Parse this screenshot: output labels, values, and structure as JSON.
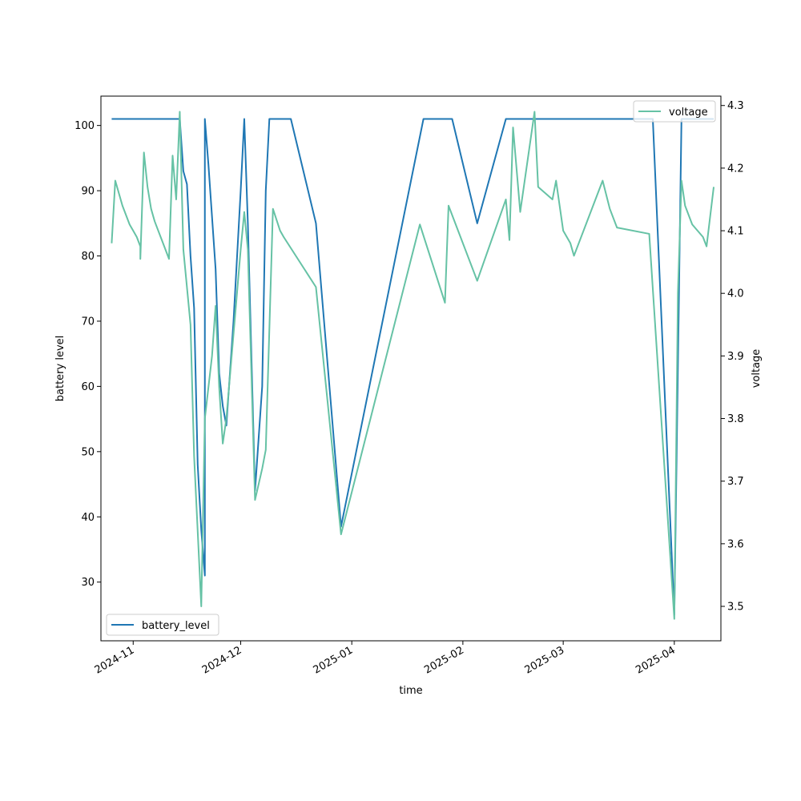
{
  "chart_data": {
    "type": "line",
    "title": "",
    "xlabel": "time",
    "ylabel_left": "battery level",
    "ylabel_right": "voltage",
    "xlim": [
      "2024-10-23",
      "2025-04-14"
    ],
    "ylim_left": [
      21,
      104.5
    ],
    "ylim_right": [
      3.445,
      4.315
    ],
    "x_ticks": [
      {
        "date": "2024-11-01",
        "label": "2024-11"
      },
      {
        "date": "2024-12-01",
        "label": "2024-12"
      },
      {
        "date": "2025-01-01",
        "label": "2025-01"
      },
      {
        "date": "2025-02-01",
        "label": "2025-02"
      },
      {
        "date": "2025-03-01",
        "label": "2025-03"
      },
      {
        "date": "2025-04-01",
        "label": "2025-04"
      }
    ],
    "y_ticks_left": [
      30,
      40,
      50,
      60,
      70,
      80,
      90,
      100
    ],
    "y_ticks_right": [
      3.5,
      3.6,
      3.7,
      3.8,
      3.9,
      4.0,
      4.1,
      4.2,
      4.3
    ],
    "grid": false,
    "legend": [
      {
        "series": "battery_level",
        "label": "battery_level",
        "placement": "lower-left"
      },
      {
        "series": "voltage",
        "label": "voltage",
        "placement": "upper-right"
      }
    ],
    "series": [
      {
        "name": "battery_level",
        "axis": "left",
        "color": "#1f77b4",
        "points": [
          [
            "2024-10-26",
            101
          ],
          [
            "2024-11-14",
            101
          ],
          [
            "2024-11-15",
            93
          ],
          [
            "2024-11-16",
            91
          ],
          [
            "2024-11-17",
            80
          ],
          [
            "2024-11-18",
            72
          ],
          [
            "2024-11-19",
            48
          ],
          [
            "2024-11-20",
            38
          ],
          [
            "2024-11-21",
            31
          ],
          [
            "2024-11-21",
            101
          ],
          [
            "2024-11-22",
            94
          ],
          [
            "2024-11-24",
            78
          ],
          [
            "2024-11-25",
            62
          ],
          [
            "2024-11-26",
            57
          ],
          [
            "2024-11-27",
            54
          ],
          [
            "2024-11-29",
            70
          ],
          [
            "2024-12-01",
            90
          ],
          [
            "2024-12-02",
            101
          ],
          [
            "2024-12-03",
            85
          ],
          [
            "2024-12-05",
            44
          ],
          [
            "2024-12-07",
            60
          ],
          [
            "2024-12-08",
            90
          ],
          [
            "2024-12-09",
            101
          ],
          [
            "2024-12-15",
            101
          ],
          [
            "2024-12-22",
            85
          ],
          [
            "2024-12-29",
            38.5
          ],
          [
            "2025-01-21",
            101
          ],
          [
            "2025-01-29",
            101
          ],
          [
            "2025-02-05",
            85
          ],
          [
            "2025-02-13",
            101
          ],
          [
            "2025-03-26",
            101
          ],
          [
            "2025-04-01",
            25
          ],
          [
            "2025-04-03",
            101
          ],
          [
            "2025-04-12",
            101
          ]
        ]
      },
      {
        "name": "voltage",
        "axis": "right",
        "color": "#66c2a5",
        "points": [
          [
            "2024-10-26",
            4.08
          ],
          [
            "2024-10-27",
            4.18
          ],
          [
            "2024-10-28",
            4.16
          ],
          [
            "2024-10-29",
            4.14
          ],
          [
            "2024-10-30",
            4.125
          ],
          [
            "2024-10-31",
            4.11
          ],
          [
            "2024-11-01",
            4.1
          ],
          [
            "2024-11-02",
            4.09
          ],
          [
            "2024-11-03",
            4.075
          ],
          [
            "2024-11-03",
            4.055
          ],
          [
            "2024-11-04",
            4.225
          ],
          [
            "2024-11-05",
            4.17
          ],
          [
            "2024-11-06",
            4.135
          ],
          [
            "2024-11-07",
            4.115
          ],
          [
            "2024-11-08",
            4.1
          ],
          [
            "2024-11-09",
            4.085
          ],
          [
            "2024-11-10",
            4.07
          ],
          [
            "2024-11-11",
            4.055
          ],
          [
            "2024-11-12",
            4.22
          ],
          [
            "2024-11-13",
            4.15
          ],
          [
            "2024-11-14",
            4.29
          ],
          [
            "2024-11-15",
            4.07
          ],
          [
            "2024-11-17",
            3.95
          ],
          [
            "2024-11-18",
            3.74
          ],
          [
            "2024-11-19",
            3.62
          ],
          [
            "2024-11-20",
            3.5
          ],
          [
            "2024-11-21",
            3.8
          ],
          [
            "2024-11-23",
            3.9
          ],
          [
            "2024-11-24",
            3.98
          ],
          [
            "2024-11-25",
            3.85
          ],
          [
            "2024-11-26",
            3.76
          ],
          [
            "2024-11-27",
            3.8
          ],
          [
            "2024-12-01",
            4.07
          ],
          [
            "2024-12-02",
            4.13
          ],
          [
            "2024-12-03",
            4.07
          ],
          [
            "2024-12-05",
            3.67
          ],
          [
            "2024-12-07",
            3.72
          ],
          [
            "2024-12-08",
            3.75
          ],
          [
            "2024-12-10",
            4.135
          ],
          [
            "2024-12-12",
            4.1
          ],
          [
            "2024-12-13",
            4.09
          ],
          [
            "2024-12-22",
            4.01
          ],
          [
            "2024-12-29",
            3.615
          ],
          [
            "2025-01-20",
            4.11
          ],
          [
            "2025-01-27",
            3.985
          ],
          [
            "2025-01-28",
            4.14
          ],
          [
            "2025-02-05",
            4.02
          ],
          [
            "2025-02-13",
            4.15
          ],
          [
            "2025-02-14",
            4.085
          ],
          [
            "2025-02-15",
            4.265
          ],
          [
            "2025-02-17",
            4.13
          ],
          [
            "2025-02-21",
            4.29
          ],
          [
            "2025-02-22",
            4.17
          ],
          [
            "2025-02-26",
            4.15
          ],
          [
            "2025-02-27",
            4.18
          ],
          [
            "2025-03-01",
            4.1
          ],
          [
            "2025-03-03",
            4.08
          ],
          [
            "2025-03-04",
            4.06
          ],
          [
            "2025-03-12",
            4.18
          ],
          [
            "2025-03-14",
            4.135
          ],
          [
            "2025-03-16",
            4.105
          ],
          [
            "2025-03-25",
            4.095
          ],
          [
            "2025-04-01",
            3.48
          ],
          [
            "2025-04-02",
            4.0
          ],
          [
            "2025-04-03",
            4.18
          ],
          [
            "2025-04-04",
            4.14
          ],
          [
            "2025-04-06",
            4.11
          ],
          [
            "2025-04-09",
            4.09
          ],
          [
            "2025-04-10",
            4.075
          ],
          [
            "2025-04-12",
            4.17
          ]
        ]
      }
    ]
  }
}
